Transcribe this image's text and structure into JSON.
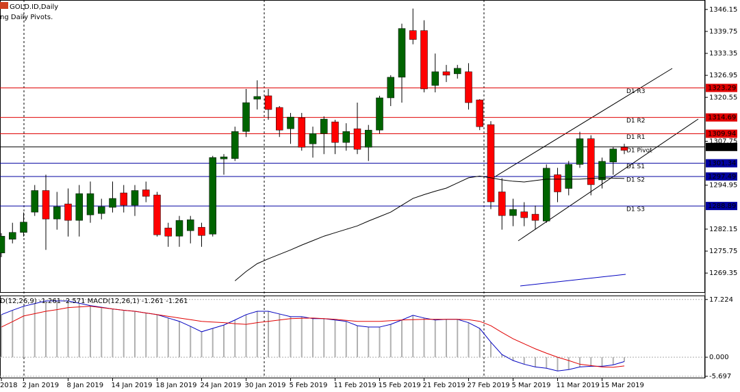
{
  "header": {
    "symbol": "GOLD.ID,Daily",
    "indicator": "ng Daily Pivots."
  },
  "chart_data": [
    {
      "type": "candlestick",
      "categories": [
        "2018",
        null,
        "2 Jan 2019",
        null,
        null,
        null,
        "8 Jan 2019",
        null,
        null,
        null,
        "14 Jan 2019",
        null,
        null,
        null,
        "18 Jan 2019",
        null,
        null,
        null,
        "24 Jan 2019",
        null,
        null,
        null,
        "30 Jan 2019",
        null,
        null,
        null,
        "5 Feb 2019",
        null,
        null,
        null,
        "11 Feb 2019",
        null,
        null,
        null,
        "15 Feb 2019",
        null,
        null,
        null,
        "21 Feb 2019",
        null,
        null,
        null,
        "27 Feb 2019",
        null,
        null,
        null,
        "5 Mar 2019",
        null,
        null,
        null,
        "11 Mar 2019",
        null,
        null,
        null,
        "15 Mar 2019",
        null,
        null
      ],
      "open": [
        1275.2,
        1279.2,
        1281.2,
        1287.1,
        1293.4,
        1285.1,
        1289.5,
        1284.7,
        1286.3,
        1286.7,
        1288.5,
        1292.7,
        1289.1,
        1293.6,
        1292.1,
        1282.5,
        1280.1,
        1281.7,
        1282.7,
        1280.7,
        1302.6,
        1302.7,
        1310.6,
        1320.0,
        1321.0,
        1317.6,
        1311.4,
        1314.6,
        1307.0,
        1310.0,
        1313.4,
        1307.4,
        1311.4,
        1306.0,
        1311.0,
        1320.4,
        1326.4,
        1340.0,
        1340.0,
        1324.0,
        1328.0,
        1327.4,
        1328.0,
        1319.8,
        1312.6,
        1293.0,
        1286.1,
        1287.2,
        1286.5,
        1284.5,
        1298.0,
        1294.0,
        1301.0,
        1308.5,
        1296.5,
        1301.7,
        1306.0
      ],
      "high": [
        1281.0,
        1284.0,
        1287.0,
        1295.0,
        1298.0,
        1293.0,
        1294.0,
        1295.0,
        1296.0,
        1291.0,
        1296.0,
        1295.0,
        1295.0,
        1296.0,
        1293.0,
        1284.0,
        1286.0,
        1286.0,
        1284.0,
        1303.5,
        1304.0,
        1312.0,
        1323.0,
        1325.5,
        1323.0,
        1318.0,
        1316.0,
        1316.0,
        1312.0,
        1315.0,
        1314.0,
        1313.0,
        1319.0,
        1312.5,
        1321.0,
        1327.0,
        1342.0,
        1346.4,
        1343.0,
        1333.3,
        1330.0,
        1330.0,
        1330.5,
        1320.0,
        1313.6,
        1297.0,
        1291.0,
        1290.0,
        1289.0,
        1301.0,
        1300.0,
        1302.0,
        1310.5,
        1309.5,
        1303.0,
        1306.0,
        1307.0
      ],
      "low": [
        1274.0,
        1278.0,
        1280.0,
        1286.0,
        1276.1,
        1282.0,
        1280.0,
        1280.0,
        1284.0,
        1285.0,
        1287.0,
        1287.0,
        1286.0,
        1290.0,
        1280.0,
        1277.0,
        1277.0,
        1278.0,
        1277.0,
        1280.0,
        1298.0,
        1302.0,
        1309.0,
        1317.0,
        1314.0,
        1309.0,
        1307.0,
        1305.0,
        1303.0,
        1304.0,
        1304.0,
        1305.0,
        1304.0,
        1302.0,
        1310.0,
        1318.0,
        1319.0,
        1336.0,
        1322.0,
        1322.0,
        1325.0,
        1326.0,
        1317.0,
        1311.0,
        1288.0,
        1282.0,
        1283.0,
        1283.0,
        1282.0,
        1284.0,
        1290.0,
        1292.0,
        1300.0,
        1292.0,
        1294.0,
        1298.0,
        1304.0
      ],
      "close": [
        1280.1,
        1281.2,
        1284.2,
        1293.4,
        1285.1,
        1288.7,
        1284.7,
        1292.5,
        1292.5,
        1288.7,
        1291.1,
        1289.1,
        1293.4,
        1291.7,
        1280.5,
        1280.1,
        1284.7,
        1284.9,
        1280.3,
        1303.0,
        1303.2,
        1310.6,
        1319.0,
        1320.8,
        1317.0,
        1311.0,
        1314.8,
        1306.0,
        1310.0,
        1314.2,
        1307.4,
        1310.6,
        1305.4,
        1311.0,
        1320.4,
        1326.4,
        1340.6,
        1337.4,
        1323.0,
        1328.0,
        1327.0,
        1329.0,
        1319.0,
        1312.0,
        1290.1,
        1286.1,
        1287.9,
        1285.5,
        1284.7,
        1299.9,
        1293.0,
        1301.0,
        1308.5,
        1295.1,
        1301.9,
        1305.5,
        1305.1
      ],
      "ma": [
        null,
        null,
        null,
        null,
        null,
        null,
        null,
        null,
        null,
        null,
        null,
        null,
        null,
        null,
        null,
        null,
        null,
        null,
        null,
        null,
        null,
        1267.1,
        1269.8,
        1272.1,
        1273.5,
        1274.8,
        1276.1,
        1277.5,
        1278.8,
        1280.1,
        1281.1,
        1282.1,
        1283.1,
        1284.5,
        1285.8,
        1287.1,
        1289.1,
        1291.1,
        1292.2,
        1293.2,
        1294.1,
        1295.6,
        1297.1,
        1297.6,
        1297.1,
        1296.5,
        1296.1,
        1295.9,
        1296.3,
        1296.7,
        1296.7,
        1296.7,
        1296.7,
        1296.9,
        1297.1,
        1297.0,
        1296.9
      ],
      "up_color": "#006400",
      "down_color": "#ff0000",
      "wick_color": "#000000",
      "ma_color": "#000000",
      "ylim": [
        1264.2,
        1348.9
      ],
      "yticks": [
        1346.15,
        1339.75,
        1333.35,
        1326.95,
        1320.55,
        1307.75,
        1294.95,
        1282.15,
        1275.75,
        1269.35
      ],
      "pivots": [
        {
          "name": "D1 R3",
          "value": 1323.29,
          "color": "#e00000"
        },
        {
          "name": "D1 R2",
          "value": 1314.69,
          "color": "#e00000"
        },
        {
          "name": "D1 R1",
          "value": 1309.94,
          "color": "#e00000"
        },
        {
          "name": "D1 Pivot",
          "value": 1306.09,
          "color": "#000000"
        },
        {
          "name": "D1 S1",
          "value": 1301.34,
          "color": "#0000a0"
        },
        {
          "name": "D1 S2",
          "value": 1297.49,
          "color": "#0000a0"
        },
        {
          "name": "D1 S3",
          "value": 1288.89,
          "color": "#0000a0"
        }
      ]
    },
    {
      "type": "macd",
      "title": "D(12,26,9) -1.261 -2.571 MACD(12,26,1) -1.261 -1.261",
      "values": [
        12.7,
        14.0,
        15.2,
        16.0,
        16.8,
        16.8,
        16.8,
        16.1,
        15.4,
        14.9,
        14.4,
        14.0,
        13.7,
        13.2,
        12.7,
        11.7,
        10.7,
        9.2,
        7.6,
        8.6,
        9.6,
        11.1,
        12.7,
        13.7,
        13.7,
        12.9,
        12.1,
        12.1,
        11.5,
        11.5,
        11.1,
        10.7,
        9.4,
        9.0,
        9.0,
        9.8,
        11.1,
        12.5,
        11.7,
        11.1,
        11.3,
        11.3,
        10.3,
        8.6,
        4.5,
        0.8,
        -1.0,
        -2.1,
        -2.9,
        -3.3,
        -4.1,
        -3.7,
        -2.9,
        -2.7,
        -2.7,
        -2.3,
        -1.3
      ],
      "signal": [
        9.0,
        10.6,
        12.3,
        13.0,
        13.7,
        14.2,
        14.8,
        15.0,
        15.2,
        14.8,
        14.4,
        14.0,
        13.7,
        13.2,
        12.7,
        12.2,
        11.7,
        11.2,
        10.7,
        10.5,
        10.3,
        10.0,
        9.8,
        10.3,
        10.7,
        11.1,
        11.5,
        11.6,
        11.7,
        11.5,
        11.3,
        11.0,
        10.7,
        10.7,
        10.7,
        10.9,
        11.1,
        11.2,
        11.3,
        11.3,
        11.3,
        11.3,
        11.2,
        10.7,
        9.4,
        7.4,
        5.5,
        4.0,
        2.5,
        1.2,
        0,
        -1.0,
        -2.1,
        -2.5,
        -2.9,
        -3.0,
        -2.6
      ],
      "bar_color": "#b0b0b0",
      "line_color": "#0000c0",
      "signal_color": "#e00000",
      "ylim": [
        -6.3,
        18.4
      ],
      "yticks": [
        17.224,
        {
          "value": 0,
          "label": "0.000"
        },
        -5.697
      ]
    }
  ]
}
